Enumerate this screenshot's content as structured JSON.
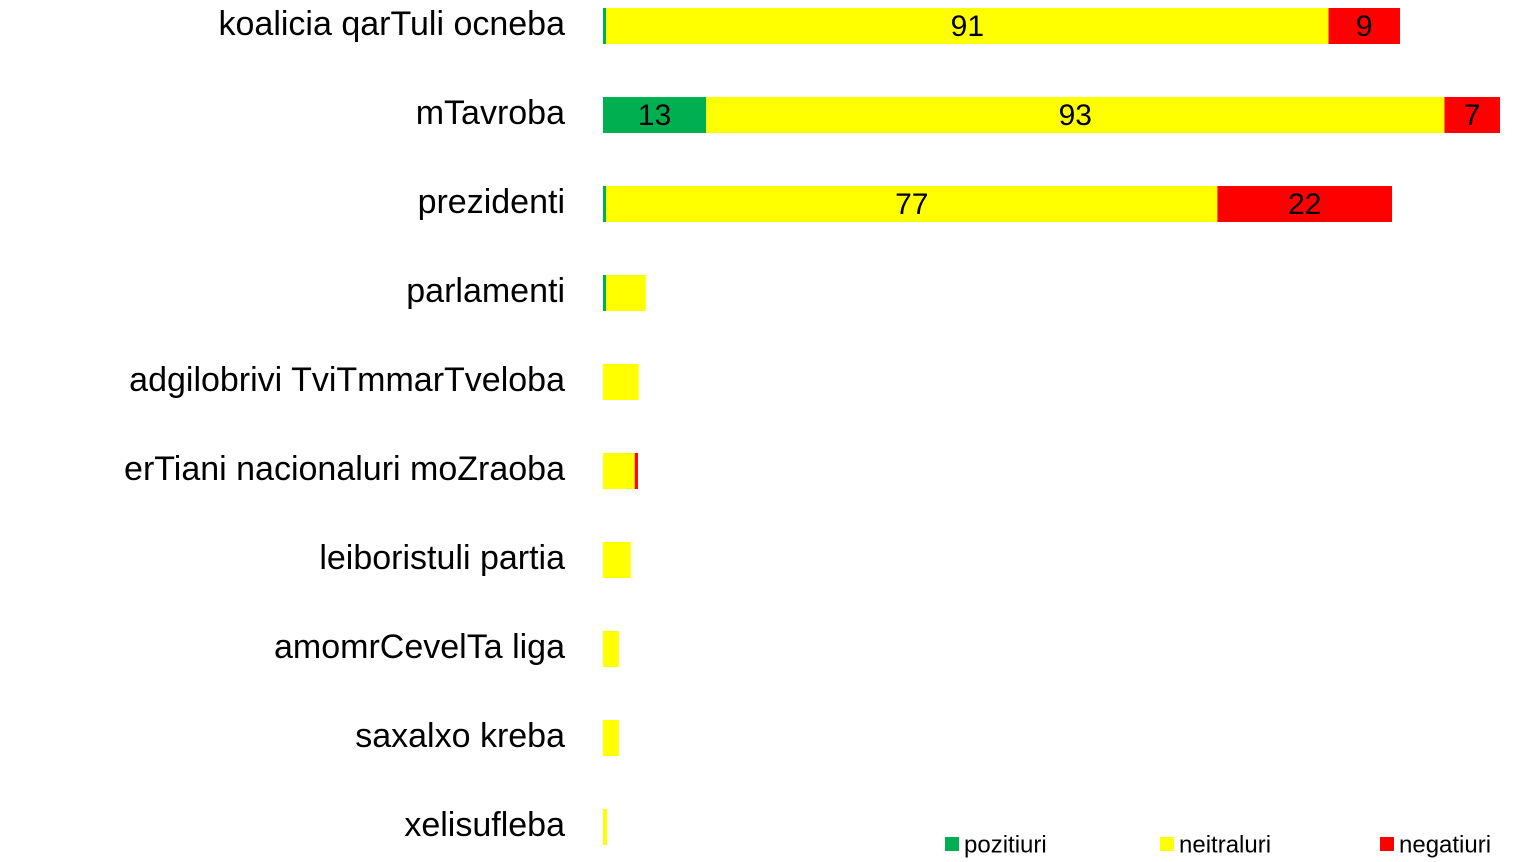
{
  "chart_data": {
    "type": "stacked-barh",
    "categories": [
      "koalicia qarTuli ocneba",
      "mTavroba",
      "prezidenti",
      "parlamenti",
      "adgilobrivi TviTmmarTveloba",
      "erTiani nacionaluri moZraoba",
      "leiboristuli partia",
      "amomrCevelTa liga",
      "saxalxo kreba",
      "xelisufleba"
    ],
    "series": [
      {
        "name": "pozitiuri",
        "color": "#00b050",
        "values": [
          0.4,
          13,
          0.4,
          0.4,
          0,
          0,
          0,
          0,
          0,
          0
        ]
      },
      {
        "name": "neitraluri",
        "color": "#ffff00",
        "values": [
          91,
          93,
          77,
          5,
          4.5,
          4,
          3.5,
          2,
          2,
          0.5
        ]
      },
      {
        "name": "negatiuri",
        "color": "#ff0000",
        "values": [
          9,
          7,
          22,
          0,
          0,
          0.4,
          0,
          0,
          0,
          0
        ]
      }
    ],
    "legend": "bottom-right"
  }
}
